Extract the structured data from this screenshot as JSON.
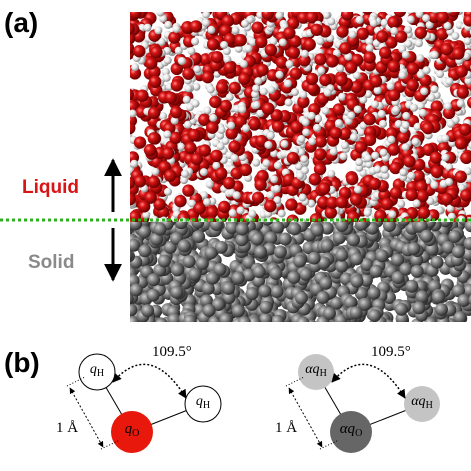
{
  "panel_a": {
    "label": "(a)",
    "liquid_label": "Liquid",
    "solid_label": "Solid"
  },
  "panel_b": {
    "label": "(b)",
    "molecule_1": {
      "h1": {
        "main": "q",
        "sub": "H"
      },
      "h2": {
        "main": "q",
        "sub": "H"
      },
      "o": {
        "main": "q",
        "sub": "O"
      },
      "angle": "109.5°",
      "bond": "1 Å"
    },
    "molecule_2": {
      "h1": {
        "main": "αq",
        "sub": "H"
      },
      "h2": {
        "main": "αq",
        "sub": "H"
      },
      "o": {
        "main": "αq",
        "sub": "O"
      },
      "angle": "109.5°",
      "bond": "1 Å"
    }
  }
}
